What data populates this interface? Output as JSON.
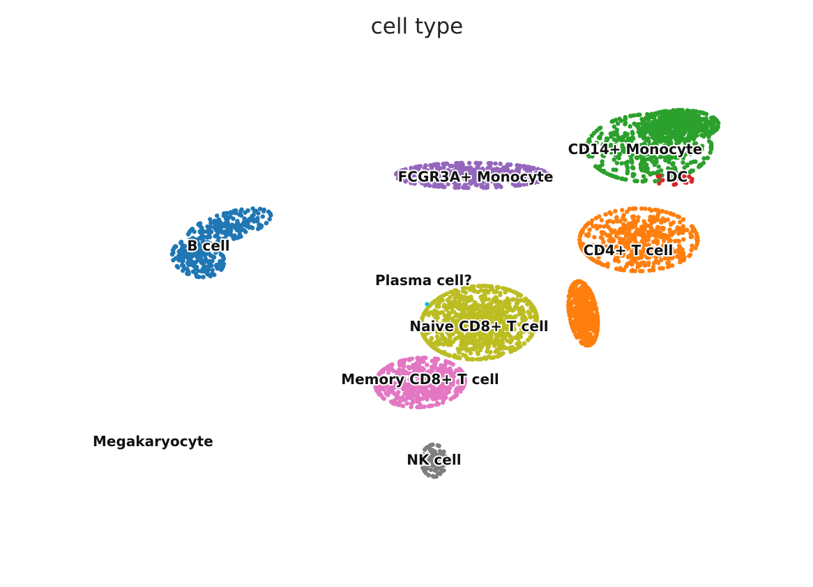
{
  "chart_data": {
    "type": "scatter",
    "title": "cell type",
    "xlabel": "",
    "ylabel": "",
    "grid": false,
    "axes_visible": false,
    "legend": "on data",
    "xlim": [
      0,
      100
    ],
    "ylim": [
      0,
      100
    ],
    "clusters": [
      {
        "name": "B cell",
        "color": "#1f77b4",
        "count": 420,
        "label": [
          20,
          58.5
        ],
        "blobs": [
          [
            23,
            63,
            6.5,
            2.8,
            0.45
          ],
          [
            18.5,
            56,
            3.5,
            4.3,
            0.55
          ]
        ]
      },
      {
        "name": "FCGR3A+ Monocyte",
        "color": "#9467bd",
        "count": 480,
        "label": [
          58.5,
          73.5
        ],
        "blobs": [
          [
            58,
            74,
            11,
            2.7,
            0.0
          ]
        ]
      },
      {
        "name": "CD14+ Monocyte",
        "color": "#2ca02c",
        "count": 950,
        "label": [
          81.5,
          79.5
        ],
        "blobs": [
          [
            83.5,
            80,
            9,
            7.3,
            0.1
          ],
          [
            88,
            85,
            5.5,
            3.2,
            0.0
          ]
        ]
      },
      {
        "name": "DC",
        "color": "#d62728",
        "count": 18,
        "label": [
          87.5,
          73.5
        ],
        "blobs": [
          [
            87,
            73,
            4.5,
            1.0,
            0.0
          ]
        ]
      },
      {
        "name": "CD4+ T cell",
        "color": "#ff7f0e",
        "count": 1000,
        "label": [
          80.5,
          57.5
        ],
        "blobs": [
          [
            82,
            60,
            8.5,
            6.8,
            0.0
          ],
          [
            74,
            44,
            2.0,
            7.0,
            0.1
          ]
        ]
      },
      {
        "name": "Naive CD8+ T cell",
        "color": "#bcbd22",
        "count": 950,
        "label": [
          59,
          41
        ],
        "blobs": [
          [
            59,
            42,
            8.5,
            7.8,
            0.5
          ]
        ]
      },
      {
        "name": "Memory CD8+ T cell",
        "color": "#e377c2",
        "count": 520,
        "label": [
          50.5,
          29.5
        ],
        "blobs": [
          [
            50.5,
            29,
            6.5,
            5.3,
            0.2
          ]
        ]
      },
      {
        "name": "NK cell",
        "color": "#7f7f7f",
        "count": 110,
        "label": [
          52.5,
          12
        ],
        "blobs": [
          [
            52.5,
            12,
            1.8,
            3.5,
            0.0
          ]
        ]
      },
      {
        "name": "Plasma cell?",
        "color": "#17becf",
        "count": 1,
        "label": [
          51,
          51
        ],
        "blobs": [
          [
            51.5,
            46,
            0,
            0,
            0.0
          ]
        ]
      },
      {
        "name": "Megakaryocyte",
        "color": "#8c564b",
        "count": 0,
        "label": [
          12,
          16
        ],
        "blobs": []
      }
    ]
  }
}
